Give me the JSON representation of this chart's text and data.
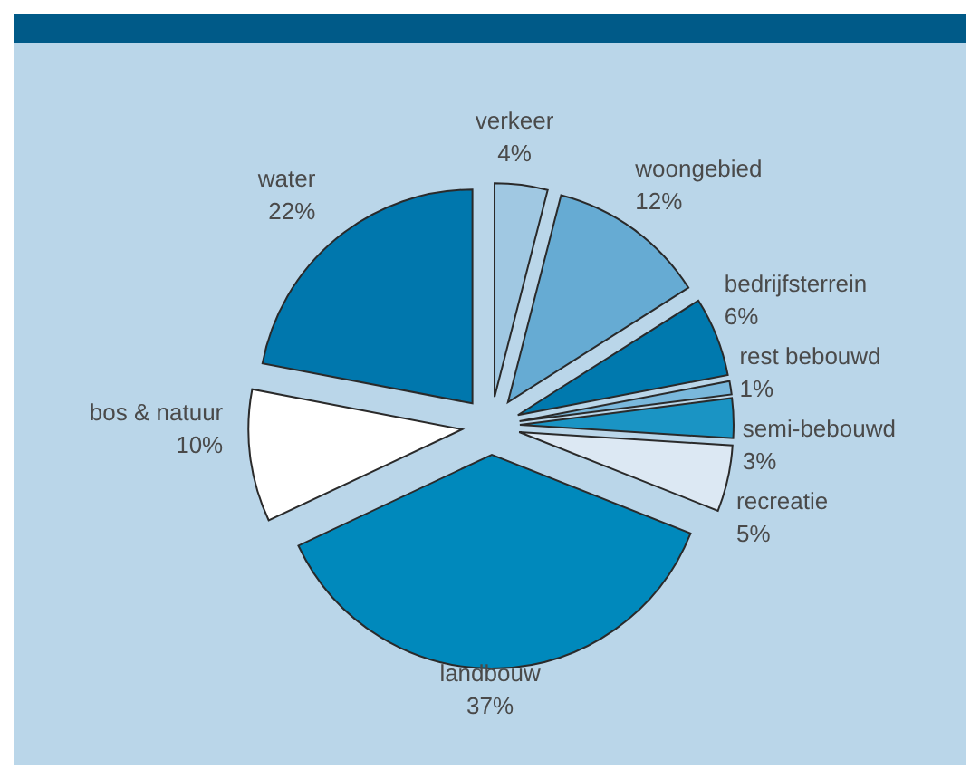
{
  "chart_data": {
    "type": "pie",
    "categories": [
      "verkeer",
      "woongebied",
      "bedrijfsterrein",
      "rest bebouwd",
      "semi-bebouwd",
      "recreatie",
      "landbouw",
      "bos & natuur",
      "water"
    ],
    "values": [
      4,
      12,
      6,
      1,
      3,
      5,
      37,
      10,
      22
    ],
    "value_labels": [
      "4%",
      "12%",
      "6%",
      "1%",
      "3%",
      "5%",
      "37%",
      "10%",
      "22%"
    ],
    "colors": [
      "#a0c8e2",
      "#66abd3",
      "#0079ae",
      "#7ab8dc",
      "#1a94c4",
      "#dce8f3",
      "#0089bc",
      "#ffffff",
      "#0077ad"
    ],
    "legend": false
  }
}
